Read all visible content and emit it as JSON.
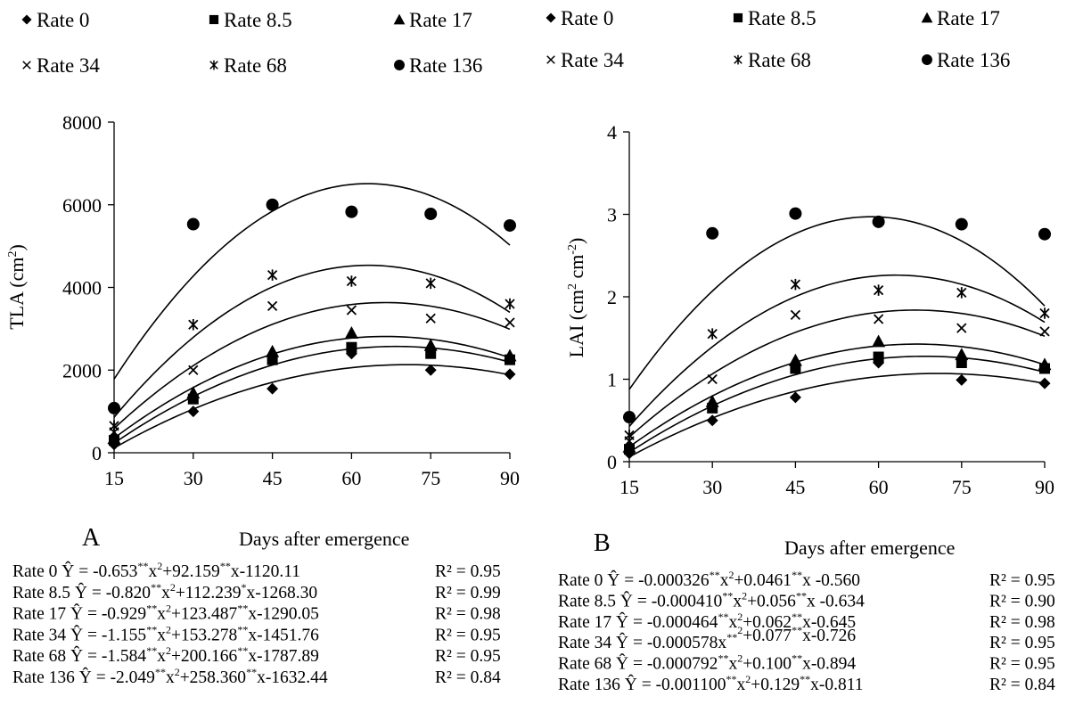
{
  "chart_data": [
    {
      "type": "scatter",
      "panel_label": "A",
      "xlabel": "Days after emergence",
      "ylabel_text": "TLA (cm",
      "ylabel_sup": "2",
      "ylabel_end": ")",
      "xlim": [
        15,
        90
      ],
      "ylim": [
        0,
        8000
      ],
      "x_ticks": [
        15,
        30,
        45,
        60,
        75,
        90
      ],
      "y_ticks": [
        0,
        2000,
        4000,
        6000,
        8000
      ],
      "x": [
        15,
        30,
        45,
        60,
        75,
        90
      ],
      "series": [
        {
          "name": "Rate 0",
          "marker": "diamond",
          "values": [
            200,
            1000,
            1550,
            2400,
            2000,
            1900
          ]
        },
        {
          "name": "Rate 8.5",
          "marker": "square",
          "values": [
            300,
            1300,
            2250,
            2550,
            2400,
            2250
          ]
        },
        {
          "name": "Rate 17",
          "marker": "triangle",
          "values": [
            350,
            1450,
            2450,
            2900,
            2600,
            2350
          ]
        },
        {
          "name": "Rate 34",
          "marker": "x",
          "values": [
            500,
            2000,
            3550,
            3450,
            3250,
            3150
          ]
        },
        {
          "name": "Rate 68",
          "marker": "star",
          "values": [
            650,
            3100,
            4300,
            4150,
            4100,
            3600
          ]
        },
        {
          "name": "Rate 136",
          "marker": "circle",
          "values": [
            1080,
            5530,
            6000,
            5830,
            5780,
            5500
          ]
        }
      ],
      "fits": [
        {
          "a": -0.653,
          "b": 92.159,
          "c": -1120.11
        },
        {
          "a": -0.82,
          "b": 112.239,
          "c": -1268.3
        },
        {
          "a": -0.929,
          "b": 123.487,
          "c": -1290.05
        },
        {
          "a": -1.155,
          "b": 153.278,
          "c": -1451.76
        },
        {
          "a": -1.584,
          "b": 200.166,
          "c": -1787.89
        },
        {
          "a": -2.049,
          "b": 258.36,
          "c": -1632.44
        }
      ],
      "equations": [
        {
          "p": [
            "Rate 0 Ŷ = -0.653",
            "**",
            "x",
            "2",
            "+92.159",
            "**",
            "x-1120.11"
          ],
          "r2": "R² = 0.95"
        },
        {
          "p": [
            "Rate 8.5 Ŷ = -0.820",
            "**",
            "x",
            "2",
            "+112.239",
            "*",
            "x-1268.30"
          ],
          "r2": "R² = 0.99"
        },
        {
          "p": [
            "Rate 17 Ŷ = -0.929",
            "**",
            "x",
            "2",
            "+123.487",
            "**",
            "x-1290.05"
          ],
          "r2": "R² = 0.98"
        },
        {
          "p": [
            "Rate 34 Ŷ = -1.155",
            "**",
            "x",
            "2",
            "+153.278",
            "**",
            "x-1451.76"
          ],
          "r2": "R² = 0.95"
        },
        {
          "p": [
            "Rate 68 Ŷ = -1.584",
            "**",
            "x",
            "2",
            "+200.166",
            "**",
            "x-1787.89"
          ],
          "r2": "R² = 0.95"
        },
        {
          "p": [
            "Rate 136 Ŷ = -2.049",
            "**",
            "x",
            "2",
            "+258.360",
            "**",
            "x-1632.44"
          ],
          "r2": "R² = 0.84"
        }
      ]
    },
    {
      "type": "scatter",
      "panel_label": "B",
      "xlabel": "Days after emergence",
      "ylabel_text": "LAI (cm",
      "ylabel_sup": "2",
      "ylabel_mid": "  cm",
      "ylabel_sup2": "-2",
      "ylabel_end": ")",
      "xlim": [
        15,
        90
      ],
      "ylim": [
        0,
        4
      ],
      "x_ticks": [
        15,
        30,
        45,
        60,
        75,
        90
      ],
      "y_ticks": [
        0,
        1,
        2,
        3,
        4
      ],
      "x": [
        15,
        30,
        45,
        60,
        75,
        90
      ],
      "series": [
        {
          "name": "Rate 0",
          "marker": "diamond",
          "values": [
            0.1,
            0.5,
            0.78,
            1.2,
            0.99,
            0.95
          ]
        },
        {
          "name": "Rate 8.5",
          "marker": "square",
          "values": [
            0.15,
            0.65,
            1.13,
            1.27,
            1.2,
            1.13
          ]
        },
        {
          "name": "Rate 17",
          "marker": "triangle",
          "values": [
            0.18,
            0.73,
            1.23,
            1.46,
            1.3,
            1.18
          ]
        },
        {
          "name": "Rate 34",
          "marker": "x",
          "values": [
            0.25,
            1.0,
            1.78,
            1.73,
            1.62,
            1.58
          ]
        },
        {
          "name": "Rate 68",
          "marker": "star",
          "values": [
            0.32,
            1.55,
            2.15,
            2.08,
            2.05,
            1.8
          ]
        },
        {
          "name": "Rate 136",
          "marker": "circle",
          "values": [
            0.54,
            2.77,
            3.01,
            2.91,
            2.88,
            2.76
          ]
        }
      ],
      "fits": [
        {
          "a": -0.000326,
          "b": 0.0461,
          "c": -0.56
        },
        {
          "a": -0.00041,
          "b": 0.056,
          "c": -0.634
        },
        {
          "a": -0.000464,
          "b": 0.062,
          "c": -0.645
        },
        {
          "a": -0.000578,
          "b": 0.077,
          "c": -0.726
        },
        {
          "a": -0.000792,
          "b": 0.1,
          "c": -0.894
        },
        {
          "a": -0.0011,
          "b": 0.129,
          "c": -0.811
        }
      ],
      "equations": [
        {
          "p": [
            "Rate 0 Ŷ = -0.000326",
            "**",
            "x",
            "2",
            "+0.0461",
            "**",
            "x -0.560"
          ],
          "r2": "R² = 0.95"
        },
        {
          "p": [
            "Rate 8.5 Ŷ = -0.000410",
            "**",
            "x",
            "2",
            "+0.056",
            "**",
            "x -0.634"
          ],
          "r2": "R² = 0.90"
        },
        {
          "p": [
            "Rate 17 Ŷ = -0.000464",
            "**",
            "x",
            "2",
            "+0.062",
            "**",
            "x-0.645"
          ],
          "r2": "R² = 0.98"
        },
        {
          "p": [
            "Rate 34 Ŷ = -0.000578x",
            "**",
            "",
            "2",
            "+0.077",
            "**",
            "x-0.726"
          ],
          "r2": "R² = 0.95"
        },
        {
          "p": [
            "Rate 68 Ŷ = -0.000792",
            "**",
            "x",
            "2",
            "+0.100",
            "**",
            "x-0.894"
          ],
          "r2": "R² = 0.95"
        },
        {
          "p": [
            "Rate 136  Ŷ = -0.001100",
            "**",
            "x",
            "2",
            "+0.129",
            "**",
            "x-0.811"
          ],
          "r2": "R² = 0.84"
        }
      ]
    }
  ]
}
